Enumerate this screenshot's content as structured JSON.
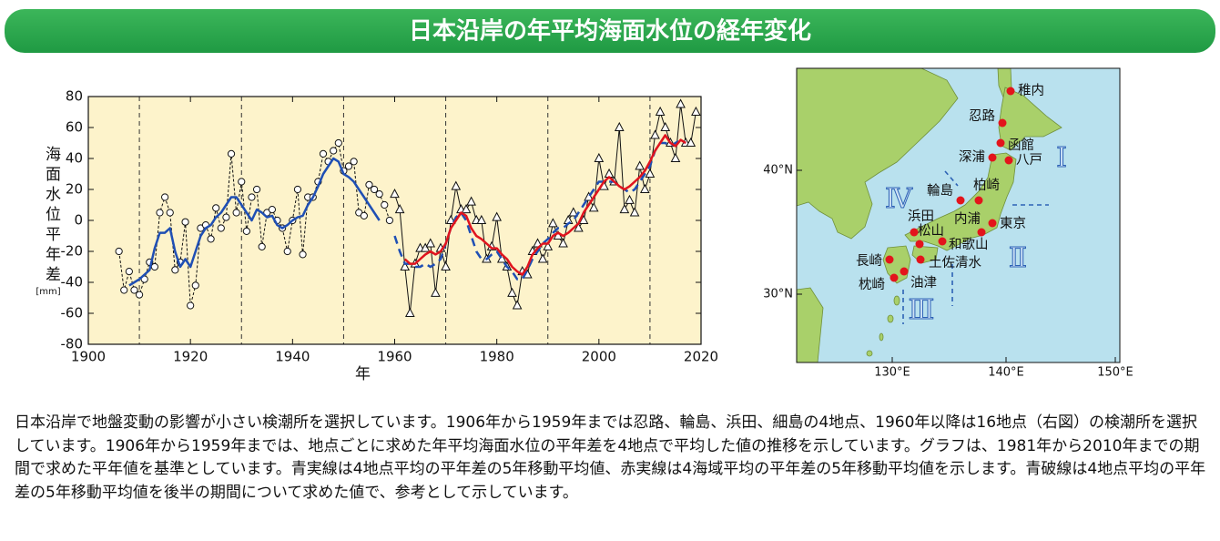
{
  "header": {
    "title": "日本沿岸の年平均海面水位の経年変化"
  },
  "chart_data": {
    "type": "line",
    "y_label": "海面水位平年差",
    "y_unit": "[mm]",
    "x_label": "年",
    "xlim": [
      1900,
      2020
    ],
    "xticks": [
      1900,
      1920,
      1940,
      1960,
      1980,
      2000,
      2020
    ],
    "ylim": [
      -80,
      80
    ],
    "yticks": [
      -80,
      -60,
      -40,
      -20,
      0,
      20,
      40,
      60,
      80
    ],
    "x_dashed_lines": [
      1910,
      1930,
      1950,
      1970,
      1990,
      2010
    ],
    "background": "#fdf3cb",
    "series": [
      {
        "marker": "circle",
        "color": "#111111",
        "line_style": "dashed",
        "line_width": 1,
        "x": [
          1906,
          1907,
          1908,
          1909,
          1910,
          1911,
          1912,
          1913,
          1914,
          1915,
          1916,
          1917,
          1918,
          1919,
          1920,
          1921,
          1922,
          1923,
          1924,
          1925,
          1926,
          1927,
          1928,
          1929,
          1930,
          1931,
          1932,
          1933,
          1934,
          1935,
          1936,
          1937,
          1938,
          1939,
          1940,
          1941,
          1942,
          1943,
          1944,
          1945,
          1946,
          1947,
          1948,
          1949,
          1950,
          1951,
          1952,
          1953,
          1954,
          1955,
          1956,
          1957,
          1958,
          1959
        ],
        "values": [
          -20,
          -45,
          -33,
          -45,
          -48,
          -38,
          -27,
          -30,
          5,
          15,
          5,
          -32,
          -27,
          -1,
          -55,
          -42,
          -5,
          -3,
          -12,
          8,
          -5,
          2,
          43,
          5,
          25,
          -7,
          15,
          20,
          -17,
          5,
          7,
          0,
          -5,
          -20,
          0,
          20,
          -22,
          15,
          15,
          25,
          43,
          38,
          45,
          50,
          32,
          35,
          38,
          5,
          3,
          23,
          20,
          17,
          10,
          0
        ]
      },
      {
        "marker": "triangle",
        "color": "#111111",
        "line_style": "solid",
        "line_width": 1,
        "x": [
          1960,
          1961,
          1962,
          1963,
          1964,
          1965,
          1966,
          1967,
          1968,
          1969,
          1970,
          1971,
          1972,
          1973,
          1974,
          1975,
          1976,
          1977,
          1978,
          1979,
          1980,
          1981,
          1982,
          1983,
          1984,
          1985,
          1986,
          1987,
          1988,
          1989,
          1990,
          1991,
          1992,
          1993,
          1994,
          1995,
          1996,
          1997,
          1998,
          1999,
          2000,
          2001,
          2002,
          2003,
          2004,
          2005,
          2006,
          2007,
          2008,
          2009,
          2010,
          2011,
          2012,
          2013,
          2014,
          2015,
          2016,
          2017,
          2018,
          2019
        ],
        "values": [
          17,
          7,
          -30,
          -60,
          -28,
          -18,
          -18,
          -15,
          -47,
          -18,
          -30,
          0,
          22,
          7,
          7,
          12,
          0,
          0,
          -25,
          -17,
          2,
          -25,
          -30,
          -47,
          -55,
          -33,
          -35,
          -20,
          -15,
          -25,
          -17,
          -2,
          -10,
          -15,
          0,
          5,
          -5,
          0,
          15,
          8,
          40,
          22,
          30,
          25,
          60,
          7,
          13,
          5,
          35,
          20,
          30,
          55,
          70,
          60,
          50,
          40,
          75,
          50,
          50,
          70
        ]
      },
      {
        "color": "#1f4fb4",
        "line_style": "solid",
        "line_width": 2.5,
        "x": [
          1908,
          1909,
          1910,
          1911,
          1912,
          1913,
          1914,
          1915,
          1916,
          1917,
          1918,
          1919,
          1920,
          1921,
          1922,
          1923,
          1924,
          1925,
          1926,
          1927,
          1928,
          1929,
          1930,
          1931,
          1932,
          1933,
          1934,
          1935,
          1936,
          1937,
          1938,
          1939,
          1940,
          1941,
          1942,
          1943,
          1944,
          1945,
          1946,
          1947,
          1948,
          1949,
          1950,
          1951,
          1952,
          1953,
          1954,
          1955,
          1956,
          1957
        ],
        "values": [
          -42,
          -40,
          -38,
          -35,
          -32,
          -18,
          -8,
          -8,
          -5,
          -20,
          -30,
          -25,
          -30,
          -20,
          -10,
          -5,
          -3,
          2,
          5,
          10,
          15,
          15,
          10,
          5,
          0,
          7,
          5,
          2,
          3,
          -3,
          -5,
          -3,
          0,
          2,
          3,
          10,
          15,
          22,
          30,
          35,
          40,
          38,
          30,
          28,
          25,
          20,
          15,
          10,
          5,
          0
        ]
      },
      {
        "color": "#1f4fb4",
        "line_style": "dashed",
        "line_width": 2.5,
        "x": [
          1960,
          1961,
          1962,
          1963,
          1964,
          1965,
          1966,
          1967,
          1968,
          1969,
          1970,
          1971,
          1972,
          1973,
          1974,
          1975,
          1976,
          1977,
          1978,
          1979,
          1980,
          1981,
          1982,
          1983,
          1984,
          1985,
          1986,
          1987,
          1988,
          1989,
          1990,
          1991,
          1992,
          1993,
          1994,
          1995,
          1996,
          1997,
          1998,
          1999,
          2000,
          2001,
          2002,
          2003,
          2004,
          2005,
          2006,
          2007,
          2008,
          2009,
          2010,
          2011,
          2012,
          2013,
          2014,
          2015,
          2016,
          2017
        ],
        "values": [
          -10,
          -20,
          -28,
          -28,
          -30,
          -30,
          -28,
          -30,
          -28,
          -25,
          -15,
          -5,
          2,
          5,
          0,
          -10,
          -20,
          -25,
          -25,
          -22,
          -20,
          -25,
          -30,
          -33,
          -38,
          -38,
          -32,
          -25,
          -20,
          -15,
          -12,
          -8,
          -5,
          -5,
          -2,
          0,
          5,
          10,
          15,
          20,
          25,
          25,
          25,
          25,
          22,
          20,
          18,
          20,
          25,
          30,
          35,
          45,
          50,
          50,
          48,
          50,
          52,
          50
        ]
      },
      {
        "color": "#e0141e",
        "line_style": "solid",
        "line_width": 2.5,
        "x": [
          1962,
          1963,
          1964,
          1965,
          1966,
          1967,
          1968,
          1969,
          1970,
          1971,
          1972,
          1973,
          1974,
          1975,
          1976,
          1977,
          1978,
          1979,
          1980,
          1981,
          1982,
          1983,
          1984,
          1985,
          1986,
          1987,
          1988,
          1989,
          1990,
          1991,
          1992,
          1993,
          1994,
          1995,
          1996,
          1997,
          1998,
          1999,
          2000,
          2001,
          2002,
          2003,
          2004,
          2005,
          2006,
          2007,
          2008,
          2009,
          2010,
          2011,
          2012,
          2013,
          2014,
          2015,
          2016,
          2017
        ],
        "values": [
          -25,
          -28,
          -28,
          -25,
          -22,
          -20,
          -22,
          -20,
          -15,
          -5,
          0,
          5,
          3,
          -5,
          -10,
          -12,
          -15,
          -18,
          -18,
          -22,
          -25,
          -30,
          -33,
          -35,
          -30,
          -22,
          -18,
          -15,
          -15,
          -10,
          -8,
          -10,
          -8,
          -5,
          -2,
          5,
          10,
          15,
          20,
          25,
          28,
          25,
          22,
          20,
          22,
          25,
          28,
          32,
          38,
          45,
          50,
          55,
          50,
          48,
          52,
          50
        ]
      }
    ]
  },
  "map": {
    "lat_labels": [
      "40°N",
      "30°N"
    ],
    "lon_labels": [
      "130°E",
      "140°E",
      "150°E"
    ],
    "stations": [
      "稚内",
      "忍路",
      "函館",
      "深浦",
      "八戸",
      "輪島",
      "柏崎",
      "浜田",
      "東京",
      "内浦",
      "松山",
      "和歌山",
      "土佐清水",
      "長崎",
      "油津",
      "枕崎"
    ],
    "regions": [
      "Ⅰ",
      "Ⅱ",
      "Ⅲ",
      "Ⅳ"
    ]
  },
  "description": "日本沿岸で地盤変動の影響が小さい検潮所を選択しています。1906年から1959年までは忍路、輪島、浜田、細島の4地点、1960年以降は16地点（右図）の検潮所を選択しています。1906年から1959年までは、地点ごとに求めた年平均海面水位の平年差を4地点で平均した値の推移を示しています。グラフは、1981年から2010年までの期間で求めた平年値を基準としています。青実線は4地点平均の平年差の5年移動平均値、赤実線は4海域平均の平年差の5年移動平均値を示します。青破線は4地点平均の平年差の5年移動平均値を後半の期間について求めた値で、参考として示しています。"
}
